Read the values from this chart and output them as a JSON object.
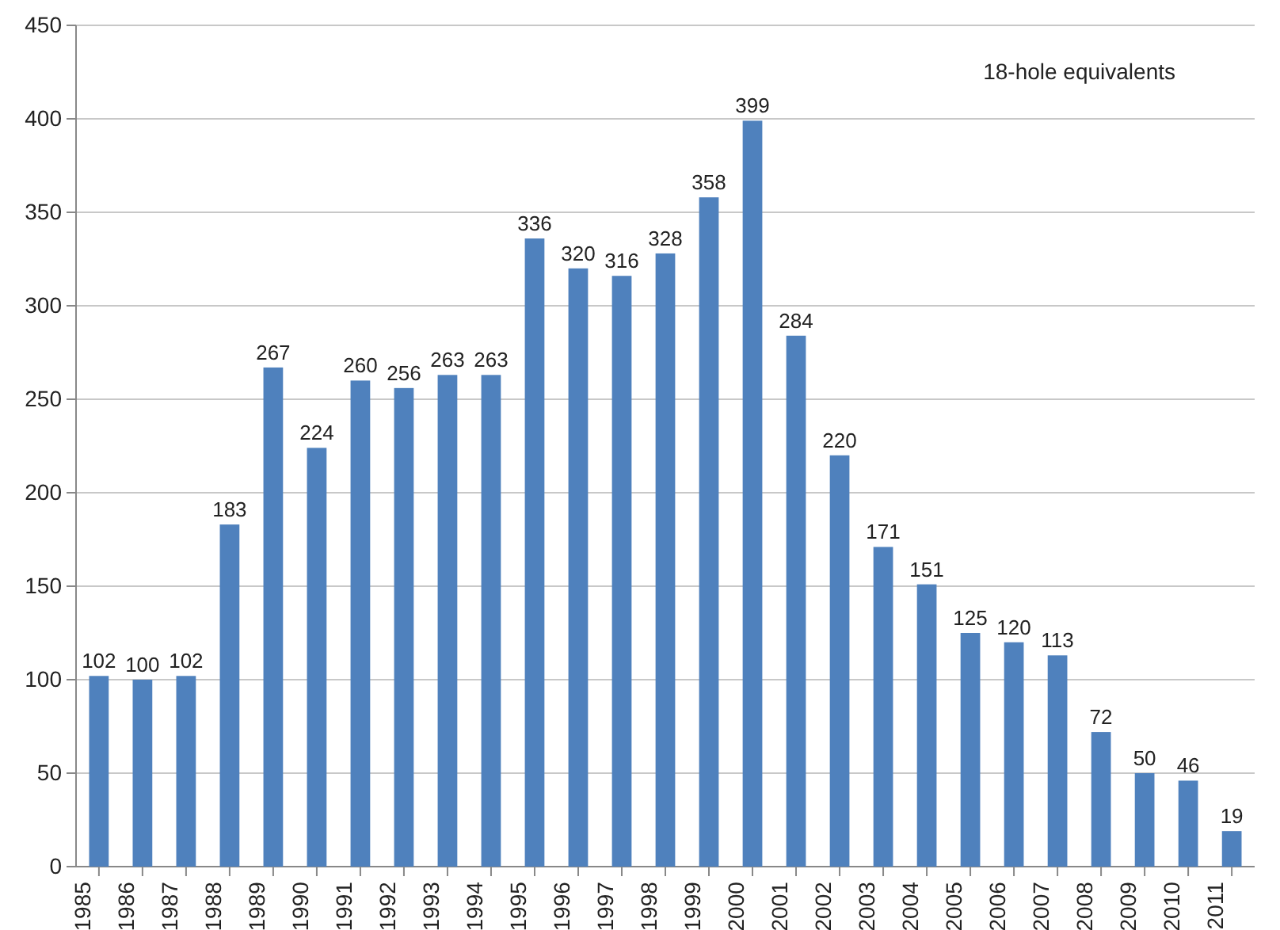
{
  "chart_data": {
    "type": "bar",
    "categories": [
      "1985",
      "1986",
      "1987",
      "1988",
      "1989",
      "1990",
      "1991",
      "1992",
      "1993",
      "1994",
      "1995",
      "1996",
      "1997",
      "1998",
      "1999",
      "2000",
      "2001",
      "2002",
      "2003",
      "2004",
      "2005",
      "2006",
      "2007",
      "2008",
      "2009",
      "2010",
      "2011"
    ],
    "values": [
      102,
      100,
      102,
      183,
      267,
      224,
      260,
      256,
      263,
      263,
      336,
      320,
      316,
      328,
      358,
      399,
      284,
      220,
      171,
      151,
      125,
      120,
      113,
      72,
      50,
      46,
      19
    ],
    "color": "#4f81bd",
    "data_labels": true,
    "ylim": [
      0,
      450
    ],
    "yticks": [
      0,
      50,
      100,
      150,
      200,
      250,
      300,
      350,
      400,
      450
    ],
    "grid": "y",
    "annotations": [
      "18-hole equivalents"
    ]
  }
}
